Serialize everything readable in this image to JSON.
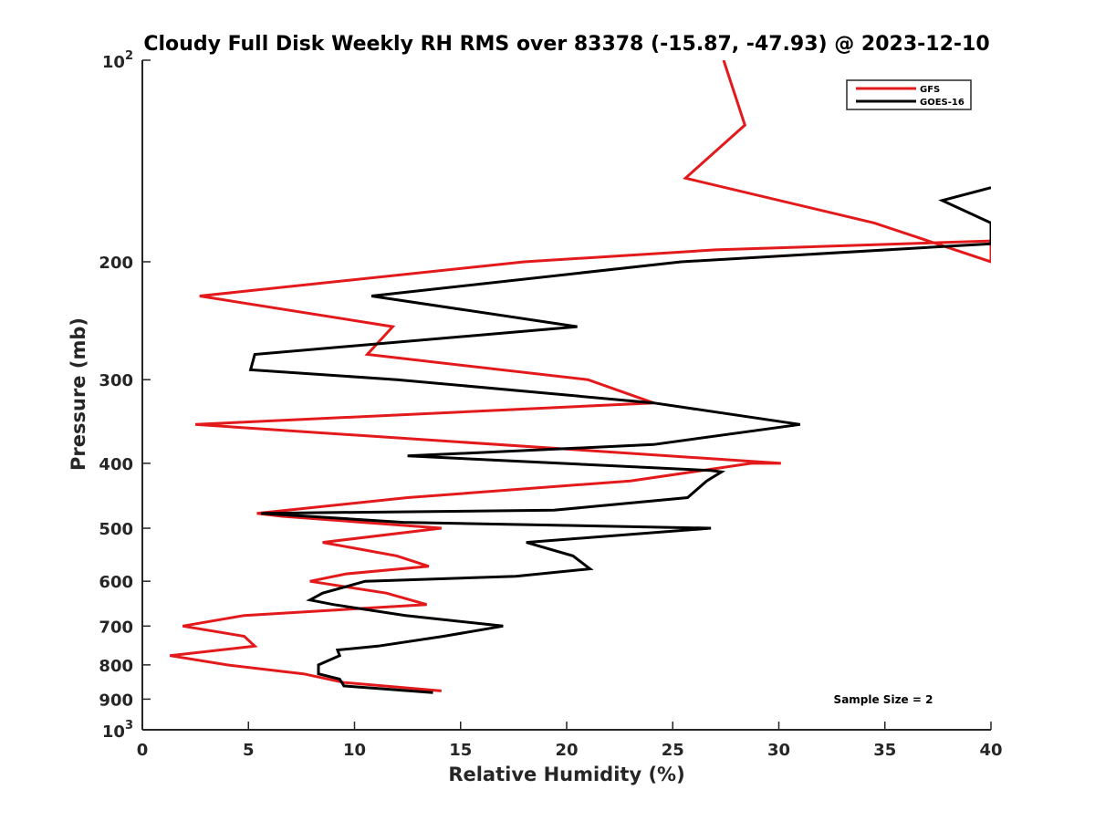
{
  "chart_data": {
    "type": "line",
    "title": "Cloudy Full Disk Weekly RH RMS over 83378 (-15.87, -47.93) @ 2023-12-10",
    "xlabel": "Relative Humidity (%)",
    "ylabel": "Pressure (mb)",
    "xlim": [
      0,
      40
    ],
    "ylim": [
      100,
      1000
    ],
    "y_scale": "log",
    "y_reversed": true,
    "x_ticks": [
      "0",
      "5",
      "10",
      "15",
      "20",
      "25",
      "30",
      "35",
      "40"
    ],
    "x_tick_values": [
      0,
      5,
      10,
      15,
      20,
      25,
      30,
      35,
      40
    ],
    "y_tick_values": [
      100,
      200,
      300,
      400,
      500,
      600,
      700,
      800,
      900,
      1000
    ],
    "y_ticks": [
      "10",
      "200",
      "300",
      "400",
      "500",
      "600",
      "700",
      "800",
      "900",
      "10"
    ],
    "y_tick_superscripts": [
      "2",
      "",
      "",
      "",
      "",
      "",
      "",
      "",
      "",
      "3"
    ],
    "grid": false,
    "legend_position": "top-right",
    "annotation": "Sample Size = 2",
    "series": [
      {
        "name": "GFS",
        "color": "#e31a1c",
        "points": [
          [
            27.4,
            100
          ],
          [
            28.4,
            125
          ],
          [
            25.6,
            150
          ],
          [
            34.5,
            175
          ],
          [
            40.0,
            200
          ],
          [
            40.0,
            187
          ],
          [
            40.5,
            186
          ],
          [
            27.0,
            192
          ],
          [
            18.0,
            200
          ],
          [
            2.7,
            225
          ],
          [
            11.8,
            250
          ],
          [
            10.6,
            275
          ],
          [
            21.0,
            300
          ],
          [
            24.1,
            325
          ],
          [
            2.5,
            350
          ],
          [
            30.1,
            400
          ],
          [
            28.7,
            400
          ],
          [
            23.0,
            425
          ],
          [
            12.5,
            450
          ],
          [
            5.4,
            475
          ],
          [
            6.6,
            480
          ],
          [
            14.1,
            500
          ],
          [
            8.5,
            525
          ],
          [
            12.0,
            550
          ],
          [
            13.5,
            570
          ],
          [
            9.6,
            585
          ],
          [
            7.9,
            600
          ],
          [
            11.5,
            625
          ],
          [
            13.4,
            650
          ],
          [
            4.8,
            675
          ],
          [
            1.9,
            700
          ],
          [
            4.8,
            725
          ],
          [
            5.3,
            750
          ],
          [
            1.3,
            775
          ],
          [
            4.0,
            800
          ],
          [
            7.6,
            825
          ],
          [
            9.5,
            850
          ],
          [
            14.1,
            875
          ]
        ]
      },
      {
        "name": "GOES-16",
        "color": "#000000",
        "points": [
          [
            40.0,
            155
          ],
          [
            37.7,
            162
          ],
          [
            40.0,
            175
          ],
          [
            40.0,
            188
          ],
          [
            25.4,
            200
          ],
          [
            10.8,
            225
          ],
          [
            20.5,
            250
          ],
          [
            5.3,
            275
          ],
          [
            5.1,
            290
          ],
          [
            12.0,
            300
          ],
          [
            24.1,
            325
          ],
          [
            31.0,
            350
          ],
          [
            24.1,
            375
          ],
          [
            12.5,
            390
          ],
          [
            26.8,
            410
          ],
          [
            27.3,
            412
          ],
          [
            26.6,
            425
          ],
          [
            25.7,
            450
          ],
          [
            19.4,
            470
          ],
          [
            5.6,
            475
          ],
          [
            12.3,
            490
          ],
          [
            26.8,
            500
          ],
          [
            18.1,
            525
          ],
          [
            20.3,
            550
          ],
          [
            21.1,
            575
          ],
          [
            17.6,
            590
          ],
          [
            10.5,
            600
          ],
          [
            8.5,
            625
          ],
          [
            7.9,
            640
          ],
          [
            9.0,
            650
          ],
          [
            12.4,
            675
          ],
          [
            17.0,
            700
          ],
          [
            14.2,
            725
          ],
          [
            11.1,
            750
          ],
          [
            9.2,
            760
          ],
          [
            9.3,
            775
          ],
          [
            8.3,
            800
          ],
          [
            8.3,
            825
          ],
          [
            9.3,
            840
          ],
          [
            9.5,
            860
          ],
          [
            13.7,
            880
          ]
        ]
      }
    ]
  }
}
